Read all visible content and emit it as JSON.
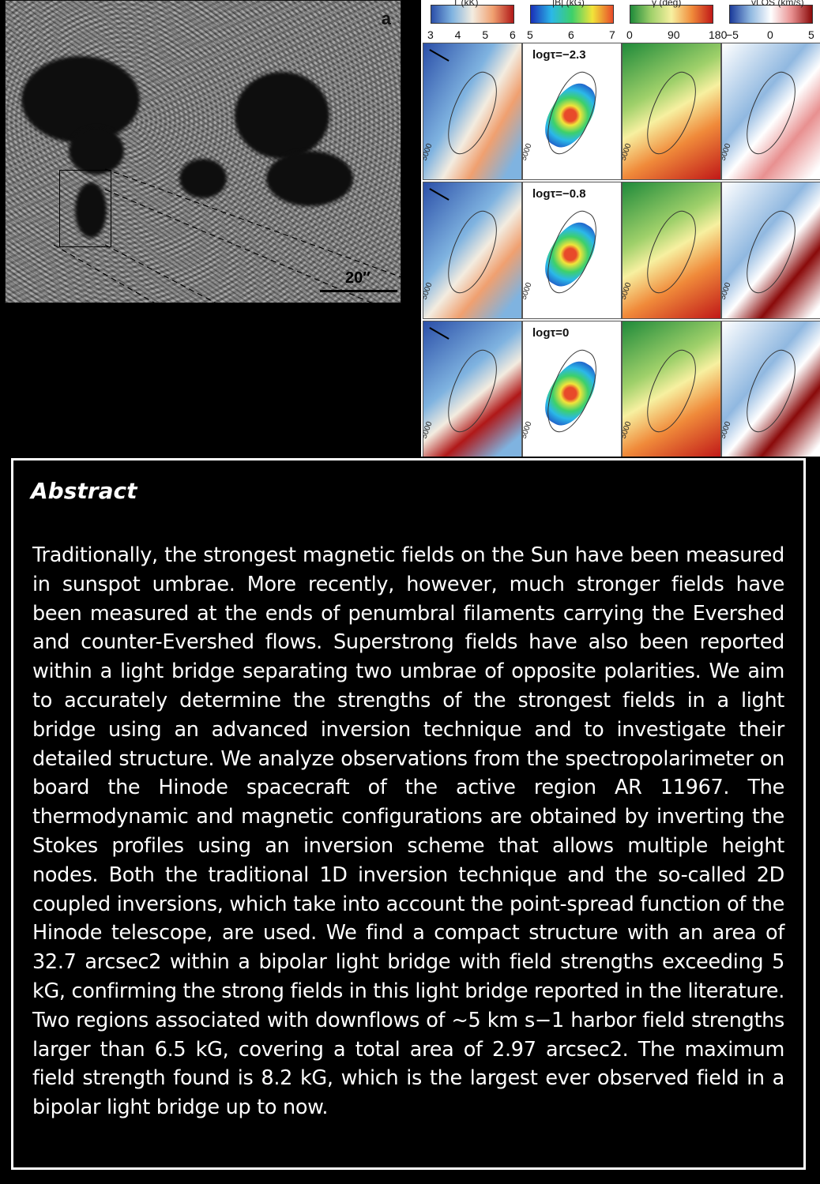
{
  "figure": {
    "panel_letter": "a",
    "scale_label": "20″",
    "colorbars": [
      {
        "title": "T (kK)",
        "ticks": [
          "3",
          "4",
          "5",
          "6"
        ],
        "gradient": [
          "#2b4fa8",
          "#7fb3e0",
          "#f3ece0",
          "#f0a070",
          "#b01818"
        ]
      },
      {
        "title": "|B| (kG)",
        "ticks": [
          "5",
          "6",
          "7"
        ],
        "gradient": [
          "#1a2fb8",
          "#2bb8e8",
          "#3dd06a",
          "#f2e43a",
          "#e84a2a"
        ]
      },
      {
        "title": "γ (deg)",
        "ticks": [
          "0",
          "90",
          "180"
        ],
        "gradient": [
          "#1f8a3a",
          "#9fd06a",
          "#f7f0a0",
          "#f08a3a",
          "#c01818"
        ]
      },
      {
        "title": "vLOS (km/s)",
        "ticks": [
          "−5",
          "0",
          "5"
        ],
        "gradient": [
          "#1a3a9a",
          "#90b8e0",
          "#ffffff",
          "#e89090",
          "#8a0a0a"
        ]
      }
    ],
    "rows": [
      {
        "label": "logτ=−2.3"
      },
      {
        "label": "logτ=−0.8"
      },
      {
        "label": "logτ=0"
      }
    ],
    "contour_label": "5000"
  },
  "abstract": {
    "heading": "Abstract",
    "body": "Traditionally, the strongest magnetic fields on the Sun have been measured in sunspot umbrae. More recently, however, much stronger fields have been measured at the ends of penumbral filaments carrying the Evershed and counter-Evershed flows. Superstrong fields have also been reported within a light bridge separating two umbrae of opposite polarities. We aim to accurately determine the strengths of the strongest fields in a light bridge using an advanced inversion technique and to investigate their detailed structure. We analyze observations from the spectropolarimeter on board the Hinode spacecraft of the active region AR 11967. The thermodynamic and magnetic configurations are obtained by inverting the Stokes profiles using an inversion scheme that allows multiple height nodes. Both the traditional 1D inversion technique and the so-called 2D coupled inversions, which take into account the point-spread function of the Hinode telescope, are used. We find a compact structure with an area of 32.7 arcsec2 within a bipolar light bridge with field strengths exceeding 5 kG, confirming the strong fields in this light bridge reported in the literature. Two regions associated with downflows of ~5 km s−1 harbor field strengths larger than 6.5 kG, covering a total area of 2.97 arcsec2. The maximum field strength found is 8.2 kG, which is the largest ever observed field in a bipolar light bridge up to now."
  }
}
